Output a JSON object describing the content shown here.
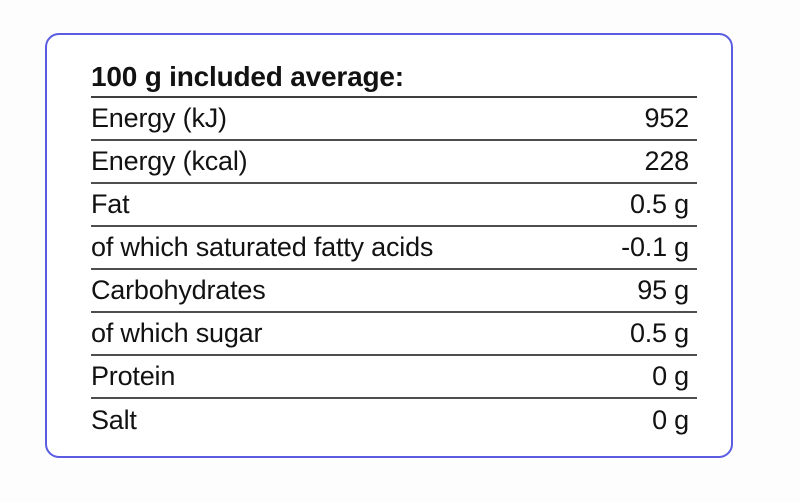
{
  "theme": {
    "card_border_color": "#5a5ce2",
    "separator_line_color": "#4e4e4e",
    "text_color": "#121212",
    "card_background": "#ffffff",
    "page_background": "#fdfdfd"
  },
  "table": {
    "header": "100 g included average:",
    "rows": [
      {
        "label": "Energy (kJ)",
        "value": "952"
      },
      {
        "label": "Energy (kcal)",
        "value": "228"
      },
      {
        "label": "Fat",
        "value": "0.5 g"
      },
      {
        "label": "of which saturated fatty acids",
        "value": "-0.1 g"
      },
      {
        "label": "Carbohydrates",
        "value": "95 g"
      },
      {
        "label": "of which sugar",
        "value": "0.5 g"
      },
      {
        "label": "Protein",
        "value": "0 g"
      },
      {
        "label": "Salt",
        "value": "0 g"
      }
    ]
  }
}
